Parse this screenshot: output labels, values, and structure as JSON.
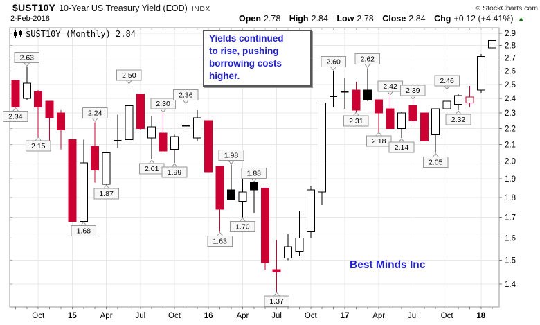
{
  "header": {
    "symbol": "$UST10Y",
    "name": "10-Year US Treasury Yield (EOD)",
    "exchange": "INDX",
    "copyright": "© StockCharts.com",
    "date": "2-Feb-2018",
    "quote": {
      "items": [
        {
          "label": "Open",
          "value": "2.78"
        },
        {
          "label": "High",
          "value": "2.84"
        },
        {
          "label": "Low",
          "value": "2.78"
        },
        {
          "label": "Close",
          "value": "2.84"
        },
        {
          "label": "Chg",
          "value": "+0.12 (+4.41%)"
        }
      ],
      "direction": "up",
      "arrow": "▲",
      "arrow_color": "#007700"
    }
  },
  "legend": {
    "text": "$UST10Y (Monthly) 2.84"
  },
  "annotation": {
    "text": "Yields continued\nto rise, pushing\nborrowing costs\nhigher.",
    "color": "#2222cc"
  },
  "watermark": {
    "text": "Best Minds Inc",
    "color": "#2222cc"
  },
  "chart_data": {
    "type": "candlestick",
    "symbol": "$UST10Y",
    "timeframe": "Monthly",
    "last_value": 2.84,
    "grid": true,
    "y_axis": {
      "side": "right",
      "scale": "log",
      "min": 1.4,
      "max": 2.9,
      "step": 0.1,
      "ticks": [
        "2.9",
        "2.8",
        "2.7",
        "2.6",
        "2.5",
        "2.4",
        "2.3",
        "2.2",
        "2.1",
        "2.0",
        "1.9",
        "1.8",
        "1.7",
        "1.6",
        "1.5",
        "1.4"
      ]
    },
    "x_axis": {
      "labels": [
        {
          "text": "Oct",
          "index": 2
        },
        {
          "text": "15",
          "index": 5,
          "bold": true
        },
        {
          "text": "Apr",
          "index": 8
        },
        {
          "text": "Jul",
          "index": 11
        },
        {
          "text": "Oct",
          "index": 14
        },
        {
          "text": "16",
          "index": 17,
          "bold": true
        },
        {
          "text": "Apr",
          "index": 20
        },
        {
          "text": "Jul",
          "index": 23
        },
        {
          "text": "Oct",
          "index": 26
        },
        {
          "text": "17",
          "index": 29,
          "bold": true
        },
        {
          "text": "Apr",
          "index": 32
        },
        {
          "text": "Jul",
          "index": 35
        },
        {
          "text": "Oct",
          "index": 38
        },
        {
          "text": "18",
          "index": 41,
          "bold": true
        }
      ]
    },
    "colors": {
      "down_red": "#cc0033",
      "up_outline": "#000000",
      "filled_black": "#000000",
      "body_bg": "#ffffff",
      "grid": "#e8e8e8",
      "border": "#999999",
      "callout_bg": "#f7f7f7",
      "callout_border": "#999999",
      "text": "#000000"
    },
    "candles": [
      {
        "m": "Aug 2014",
        "o": 2.53,
        "h": 2.53,
        "l": 2.34,
        "c": 2.34,
        "s": "r",
        "lb": "2.34",
        "lp": "below"
      },
      {
        "m": "Sep 2014",
        "o": 2.4,
        "h": 2.63,
        "l": 2.39,
        "c": 2.51,
        "s": "w",
        "lb": "2.63",
        "lp": "above"
      },
      {
        "m": "Oct 2014",
        "o": 2.45,
        "h": 2.46,
        "l": 2.15,
        "c": 2.34,
        "s": "r",
        "lb": "2.15",
        "lp": "below"
      },
      {
        "m": "Nov 2014",
        "o": 2.38,
        "h": 2.38,
        "l": 2.08,
        "c": 2.27,
        "s": "r"
      },
      {
        "m": "Dec 2014",
        "o": 2.3,
        "h": 2.32,
        "l": 2.07,
        "c": 2.19,
        "s": "r"
      },
      {
        "m": "Jan 2015",
        "o": 2.13,
        "h": 2.13,
        "l": 1.68,
        "c": 1.68,
        "s": "r"
      },
      {
        "m": "Feb 2015",
        "o": 1.68,
        "h": 2.13,
        "l": 1.68,
        "c": 1.99,
        "s": "w",
        "lb": "1.68",
        "lp": "below"
      },
      {
        "m": "Mar 2015",
        "o": 2.09,
        "h": 2.24,
        "l": 1.88,
        "c": 1.95,
        "s": "r",
        "lb": "2.24",
        "lp": "above"
      },
      {
        "m": "Apr 2015",
        "o": 1.87,
        "h": 2.05,
        "l": 1.87,
        "c": 2.05,
        "s": "w",
        "lb": "1.87",
        "lp": "below"
      },
      {
        "m": "May 2015",
        "o": 2.12,
        "h": 2.29,
        "l": 2.08,
        "c": 2.13,
        "s": "w"
      },
      {
        "m": "Jun 2015",
        "o": 2.13,
        "h": 2.5,
        "l": 2.13,
        "c": 2.35,
        "s": "w",
        "lb": "2.50",
        "lp": "above"
      },
      {
        "m": "Jul 2015",
        "o": 2.43,
        "h": 2.43,
        "l": 2.19,
        "c": 2.2,
        "s": "r"
      },
      {
        "m": "Aug 2015",
        "o": 2.14,
        "h": 2.28,
        "l": 2.01,
        "c": 2.21,
        "s": "w",
        "lb": "2.01",
        "lp": "below"
      },
      {
        "m": "Sep 2015",
        "o": 2.17,
        "h": 2.3,
        "l": 2.05,
        "c": 2.06,
        "s": "r",
        "lb": "2.30",
        "lp": "above"
      },
      {
        "m": "Oct 2015",
        "o": 2.07,
        "h": 2.16,
        "l": 1.99,
        "c": 2.15,
        "s": "w",
        "lb": "1.99",
        "lp": "below"
      },
      {
        "m": "Nov 2015",
        "o": 2.21,
        "h": 2.36,
        "l": 2.19,
        "c": 2.22,
        "s": "w",
        "lb": "2.36",
        "lp": "above"
      },
      {
        "m": "Dec 2015",
        "o": 2.14,
        "h": 2.32,
        "l": 2.12,
        "c": 2.27,
        "s": "w"
      },
      {
        "m": "Jan 2016",
        "o": 2.25,
        "h": 2.25,
        "l": 1.94,
        "c": 1.94,
        "s": "r"
      },
      {
        "m": "Feb 2016",
        "o": 1.97,
        "h": 1.97,
        "l": 1.63,
        "c": 1.74,
        "s": "r",
        "lb": "1.63",
        "lp": "below"
      },
      {
        "m": "Mar 2016",
        "o": 1.84,
        "h": 1.98,
        "l": 1.79,
        "c": 1.79,
        "s": "b",
        "lb": "1.98",
        "lp": "above"
      },
      {
        "m": "Apr 2016",
        "o": 1.78,
        "h": 1.93,
        "l": 1.7,
        "c": 1.83,
        "s": "w",
        "lb": "1.70",
        "lp": "below"
      },
      {
        "m": "May 2016",
        "o": 1.88,
        "h": 1.88,
        "l": 1.72,
        "c": 1.84,
        "s": "b",
        "lb": "1.88",
        "lp": "above"
      },
      {
        "m": "Jun 2016",
        "o": 1.85,
        "h": 1.85,
        "l": 1.46,
        "c": 1.49,
        "s": "r"
      },
      {
        "m": "Jul 2016",
        "o": 1.46,
        "h": 1.59,
        "l": 1.37,
        "c": 1.45,
        "s": "r",
        "lb": "1.37",
        "lp": "below"
      },
      {
        "m": "Aug 2016",
        "o": 1.51,
        "h": 1.62,
        "l": 1.5,
        "c": 1.56,
        "s": "w"
      },
      {
        "m": "Sep 2016",
        "o": 1.54,
        "h": 1.73,
        "l": 1.52,
        "c": 1.6,
        "s": "w"
      },
      {
        "m": "Oct 2016",
        "o": 1.63,
        "h": 1.86,
        "l": 1.6,
        "c": 1.84,
        "s": "w"
      },
      {
        "m": "Nov 2016",
        "o": 1.83,
        "h": 2.37,
        "l": 1.76,
        "c": 2.37,
        "s": "w"
      },
      {
        "m": "Dec 2016",
        "o": 2.41,
        "h": 2.6,
        "l": 2.34,
        "c": 2.42,
        "s": "w",
        "lb": "2.60",
        "lp": "above"
      },
      {
        "m": "Jan 2017",
        "o": 2.44,
        "h": 2.55,
        "l": 2.33,
        "c": 2.45,
        "s": "w"
      },
      {
        "m": "Feb 2017",
        "o": 2.46,
        "h": 2.52,
        "l": 2.31,
        "c": 2.32,
        "s": "r",
        "lb": "2.31",
        "lp": "below"
      },
      {
        "m": "Mar 2017",
        "o": 2.46,
        "h": 2.62,
        "l": 2.38,
        "c": 2.39,
        "s": "b",
        "lb": "2.62",
        "lp": "above"
      },
      {
        "m": "Apr 2017",
        "o": 2.39,
        "h": 2.39,
        "l": 2.18,
        "c": 2.3,
        "s": "r",
        "lb": "2.18",
        "lp": "below"
      },
      {
        "m": "May 2017",
        "o": 2.33,
        "h": 2.42,
        "l": 2.2,
        "c": 2.2,
        "s": "r",
        "lb": "2.42",
        "lp": "above"
      },
      {
        "m": "Jun 2017",
        "o": 2.2,
        "h": 2.31,
        "l": 2.14,
        "c": 2.3,
        "s": "w",
        "lb": "2.14",
        "lp": "below"
      },
      {
        "m": "Jul 2017",
        "o": 2.35,
        "h": 2.39,
        "l": 2.23,
        "c": 2.25,
        "s": "r",
        "lb": "2.39",
        "lp": "above"
      },
      {
        "m": "Aug 2017",
        "o": 2.3,
        "h": 2.3,
        "l": 2.12,
        "c": 2.12,
        "s": "r"
      },
      {
        "m": "Sep 2017",
        "o": 2.16,
        "h": 2.33,
        "l": 2.05,
        "c": 2.33,
        "s": "w",
        "lb": "2.05",
        "lp": "below"
      },
      {
        "m": "Oct 2017",
        "o": 2.33,
        "h": 2.46,
        "l": 2.28,
        "c": 2.38,
        "s": "w",
        "lb": "2.46",
        "lp": "above"
      },
      {
        "m": "Nov 2017",
        "o": 2.36,
        "h": 2.43,
        "l": 2.32,
        "c": 2.42,
        "s": "w",
        "lb": "2.32",
        "lp": "below"
      },
      {
        "m": "Dec 2017",
        "o": 2.37,
        "h": 2.49,
        "l": 2.34,
        "c": 2.41,
        "s": "rh"
      },
      {
        "m": "Jan 2018",
        "o": 2.46,
        "h": 2.73,
        "l": 2.44,
        "c": 2.71,
        "s": "w"
      },
      {
        "m": "Feb 2018",
        "o": 2.78,
        "h": 2.84,
        "l": 2.78,
        "c": 2.84,
        "s": "w"
      }
    ]
  }
}
